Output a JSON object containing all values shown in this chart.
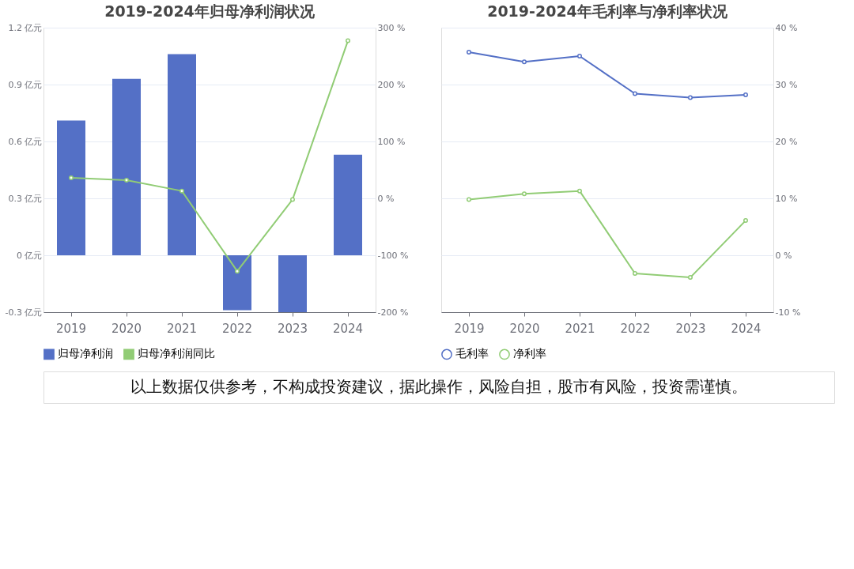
{
  "chart_data": [
    {
      "type": "bar",
      "title": "2019-2024年归母净利润状况",
      "categories": [
        "2019",
        "2020",
        "2021",
        "2022",
        "2023",
        "2024"
      ],
      "series": [
        {
          "name": "归母净利润",
          "color": "#5470c6",
          "values": [
            0.71,
            0.93,
            1.06,
            -0.29,
            -0.3,
            0.53
          ]
        },
        {
          "name": "归母净利润同比",
          "type": "line",
          "axis": "y2",
          "color": "#91cc75",
          "values": [
            36,
            32,
            13,
            -128,
            -2,
            277
          ]
        }
      ],
      "ylim": [
        -0.3,
        1.2
      ],
      "yticks": [
        {
          "value": -0.3,
          "label": "-0.3 亿元"
        },
        {
          "value": 0,
          "label": "0 亿元"
        },
        {
          "value": 0.3,
          "label": "0.3 亿元"
        },
        {
          "value": 0.6,
          "label": "0.6 亿元"
        },
        {
          "value": 0.9,
          "label": "0.9 亿元"
        },
        {
          "value": 1.2,
          "label": "1.2 亿元"
        }
      ],
      "y2lim": [
        -200,
        300
      ],
      "y2ticks": [
        {
          "value": -200,
          "label": "-200 %"
        },
        {
          "value": -100,
          "label": "-100 %"
        },
        {
          "value": 0,
          "label": "0 %"
        },
        {
          "value": 100,
          "label": "100 %"
        },
        {
          "value": 200,
          "label": "200 %"
        },
        {
          "value": 300,
          "label": "300 %"
        }
      ],
      "grid": "y",
      "legend": "bottom",
      "marker": "circle",
      "line_style": "solid"
    },
    {
      "type": "line",
      "title": "2019-2024年毛利率与净利率状况",
      "categories": [
        "2019",
        "2020",
        "2021",
        "2022",
        "2023",
        "2024"
      ],
      "series": [
        {
          "name": "毛利率",
          "axis": "y2",
          "color": "#5470c6",
          "values": [
            35.7,
            34.0,
            35.0,
            28.4,
            27.7,
            28.2
          ]
        },
        {
          "name": "净利率",
          "axis": "y2",
          "color": "#91cc75",
          "values": [
            9.8,
            10.8,
            11.3,
            -3.2,
            -3.9,
            6.1
          ]
        }
      ],
      "y2lim": [
        -10,
        40
      ],
      "y2ticks": [
        {
          "value": -10,
          "label": "-10 %"
        },
        {
          "value": 0,
          "label": "0 %"
        },
        {
          "value": 10,
          "label": "10 %"
        },
        {
          "value": 20,
          "label": "20 %"
        },
        {
          "value": 30,
          "label": "30 %"
        },
        {
          "value": 40,
          "label": "40 %"
        }
      ],
      "grid": "y",
      "legend": "bottom",
      "marker": "circle",
      "line_style": "solid",
      "annotations": [
        "以上数据仅供参考，不构成投资建议，据此操作，风险自担，股市有风险，投资需谨慎。"
      ]
    }
  ]
}
